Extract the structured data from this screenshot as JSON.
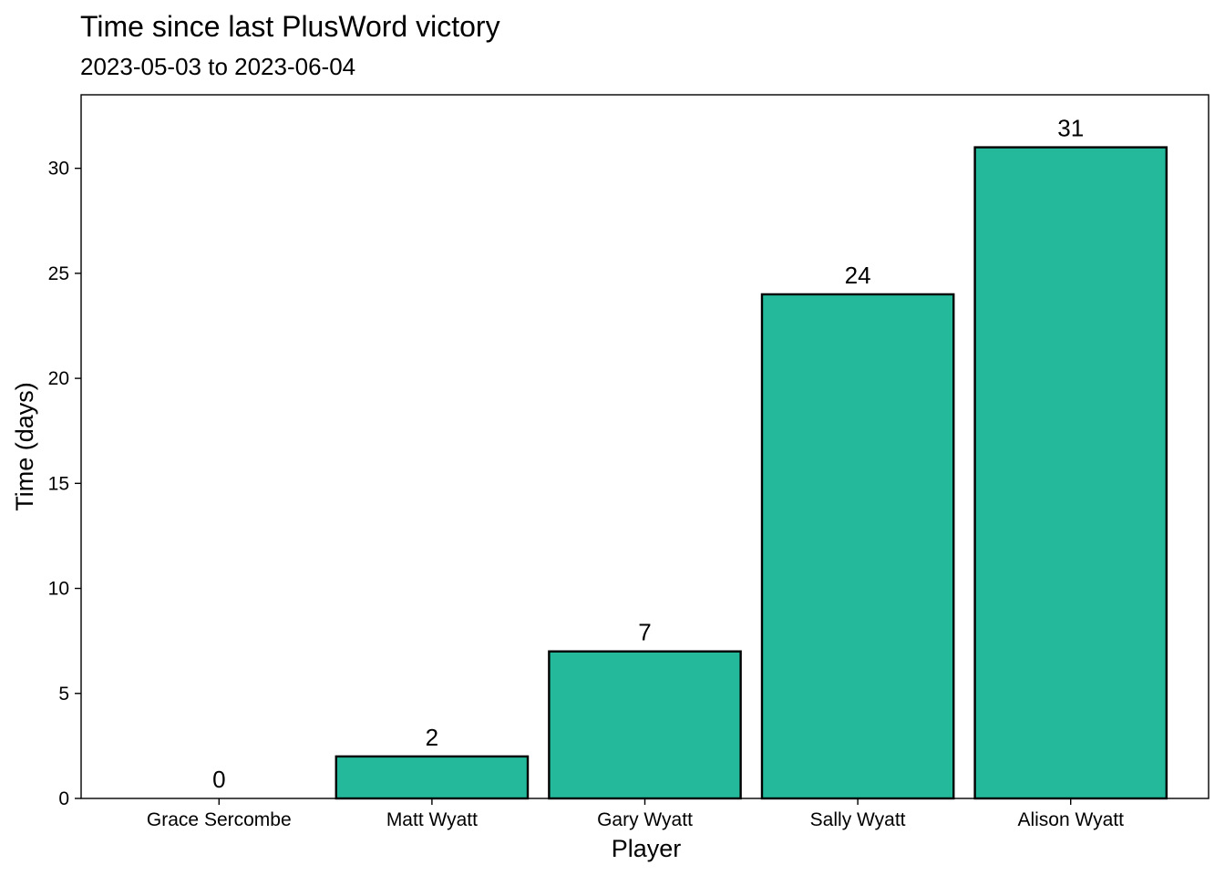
{
  "chart_data": {
    "type": "bar",
    "title": "Time since last PlusWord victory",
    "subtitle": "2023-05-03 to 2023-06-04",
    "xlabel": "Player",
    "ylabel": "Time (days)",
    "categories": [
      "Grace Sercombe",
      "Matt Wyatt",
      "Gary Wyatt",
      "Sally Wyatt",
      "Alison Wyatt"
    ],
    "values": [
      0,
      2,
      7,
      24,
      31
    ],
    "data_labels": [
      "0",
      "2",
      "7",
      "24",
      "31"
    ],
    "ylim": [
      0,
      33.5
    ],
    "yticks": [
      0,
      5,
      10,
      15,
      20,
      25,
      30
    ],
    "ytick_labels": [
      "0",
      "5",
      "10",
      "15",
      "20",
      "25",
      "30"
    ],
    "grid": false,
    "legend": "none",
    "colors": {
      "bar_fill": "#23b99a",
      "bar_outline": "#000000",
      "panel_border": "#000000",
      "background": "#ffffff"
    }
  }
}
